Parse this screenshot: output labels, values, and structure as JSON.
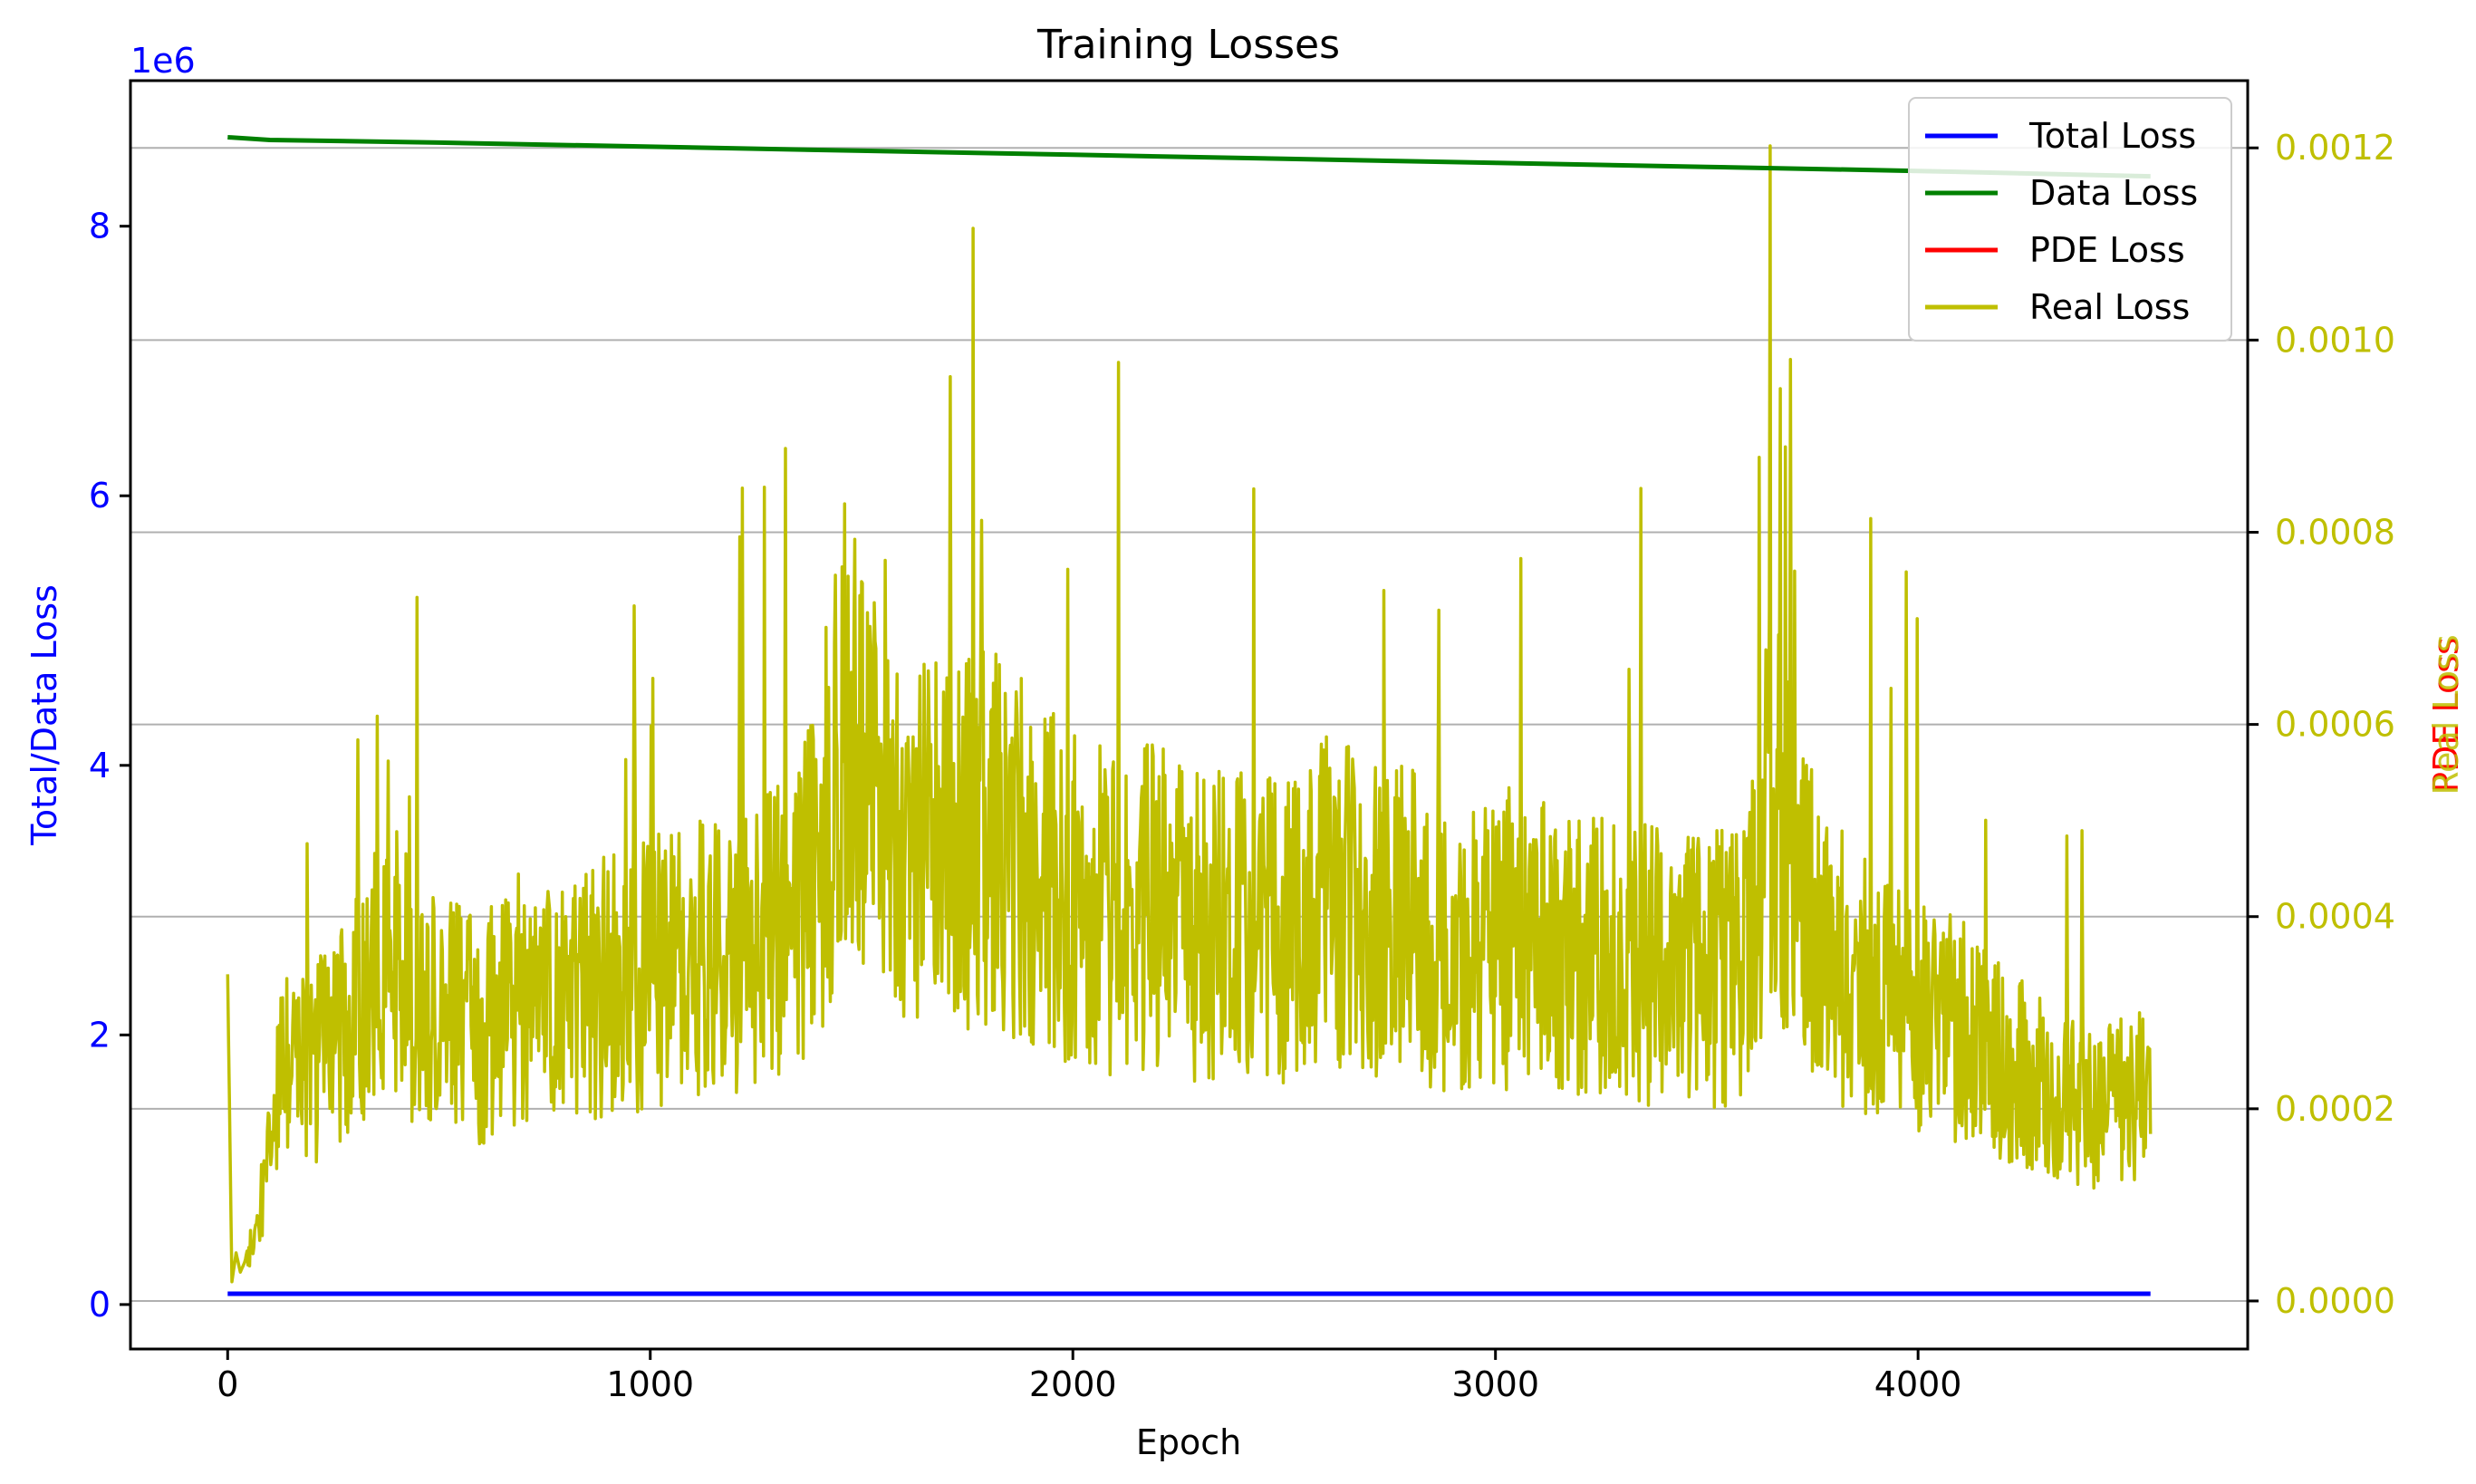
{
  "chart_data": {
    "type": "line",
    "title": "Training Losses",
    "xlabel": "Epoch",
    "ylabel_left": "Total/Data Loss",
    "ylabel_right_1": "PDE Loss",
    "ylabel_right_2": "Real Loss",
    "left_axis_offset_label": "1e6",
    "xlim": [
      -230,
      4780
    ],
    "ylim_left": [
      -0.33,
      9.08
    ],
    "ylim_right": [
      -5e-05,
      0.00127
    ],
    "x_ticks": [
      0,
      1000,
      2000,
      3000,
      4000
    ],
    "x_tick_labels": [
      "0",
      "1000",
      "2000",
      "3000",
      "4000"
    ],
    "y_left_ticks": [
      0,
      2,
      4,
      6,
      8
    ],
    "y_left_tick_labels": [
      "0",
      "2",
      "4",
      "6",
      "8"
    ],
    "y_right_ticks": [
      0,
      0.0002,
      0.0004,
      0.0006,
      0.0008,
      0.001,
      0.0012
    ],
    "y_right_tick_labels": [
      "0.0000",
      "0.0002",
      "0.0004",
      "0.0006",
      "0.0008",
      "0.0010",
      "0.0012"
    ],
    "grid": "horizontal lines at right-axis ticks",
    "legend_position": "top-right",
    "colors": {
      "total": "#0000ff",
      "data": "#008000",
      "pde": "#ff0000",
      "real": "#bfbf00",
      "left_axis": "#0000ff",
      "right_axis": "#bfbf00"
    },
    "series": [
      {
        "name": "Total Loss",
        "axis": "left",
        "x": [
          0,
          4550
        ],
        "values": [
          0.08,
          0.08
        ]
      },
      {
        "name": "Data Loss",
        "axis": "left",
        "x": [
          0,
          100,
          500,
          1000,
          1500,
          2000,
          2500,
          3000,
          3500,
          4000,
          4550
        ],
        "values": [
          8.66,
          8.64,
          8.62,
          8.59,
          8.56,
          8.53,
          8.5,
          8.47,
          8.44,
          8.41,
          8.37
        ]
      },
      {
        "name": "PDE Loss",
        "axis": "right",
        "x": [],
        "values": []
      },
      {
        "name": "Real Loss",
        "axis": "right",
        "x": [
          0,
          10,
          20,
          30,
          40,
          60,
          80,
          100,
          120,
          150,
          200,
          250,
          300,
          350,
          400,
          450,
          500,
          600,
          700,
          800,
          900,
          1000,
          1100,
          1200,
          1300,
          1400,
          1450,
          1500,
          1530,
          1600,
          1700,
          1800,
          1900,
          2000,
          2100,
          2200,
          2300,
          2400,
          2500,
          2590,
          2700,
          2800,
          2900,
          3000,
          3100,
          3200,
          3300,
          3400,
          3500,
          3600,
          3650,
          3700,
          3750,
          3800,
          3900,
          4000,
          4100,
          4200,
          4300,
          4400,
          4500,
          4550
        ],
        "values": [
          0.00034,
          2e-05,
          5e-05,
          3e-05,
          4e-05,
          6e-05,
          0.0001,
          0.00015,
          0.00022,
          0.00025,
          0.00024,
          0.00028,
          0.0003,
          0.00033,
          0.00035,
          0.0003,
          0.00031,
          0.00028,
          0.00032,
          0.0003,
          0.00033,
          0.00034,
          0.00036,
          0.00035,
          0.00038,
          0.00045,
          0.0006,
          0.00055,
          0.00062,
          0.0005,
          0.00046,
          0.00048,
          0.00045,
          0.00042,
          0.0004,
          0.00041,
          0.00039,
          0.0004,
          0.00039,
          0.00042,
          0.0004,
          0.00039,
          0.00037,
          0.00038,
          0.00037,
          0.00036,
          0.00035,
          0.00035,
          0.00034,
          0.00036,
          0.00055,
          0.00045,
          0.0004,
          0.00035,
          0.00033,
          0.0003,
          0.00028,
          0.00025,
          0.00022,
          0.0002,
          0.00021,
          0.00024
        ]
      }
    ]
  }
}
